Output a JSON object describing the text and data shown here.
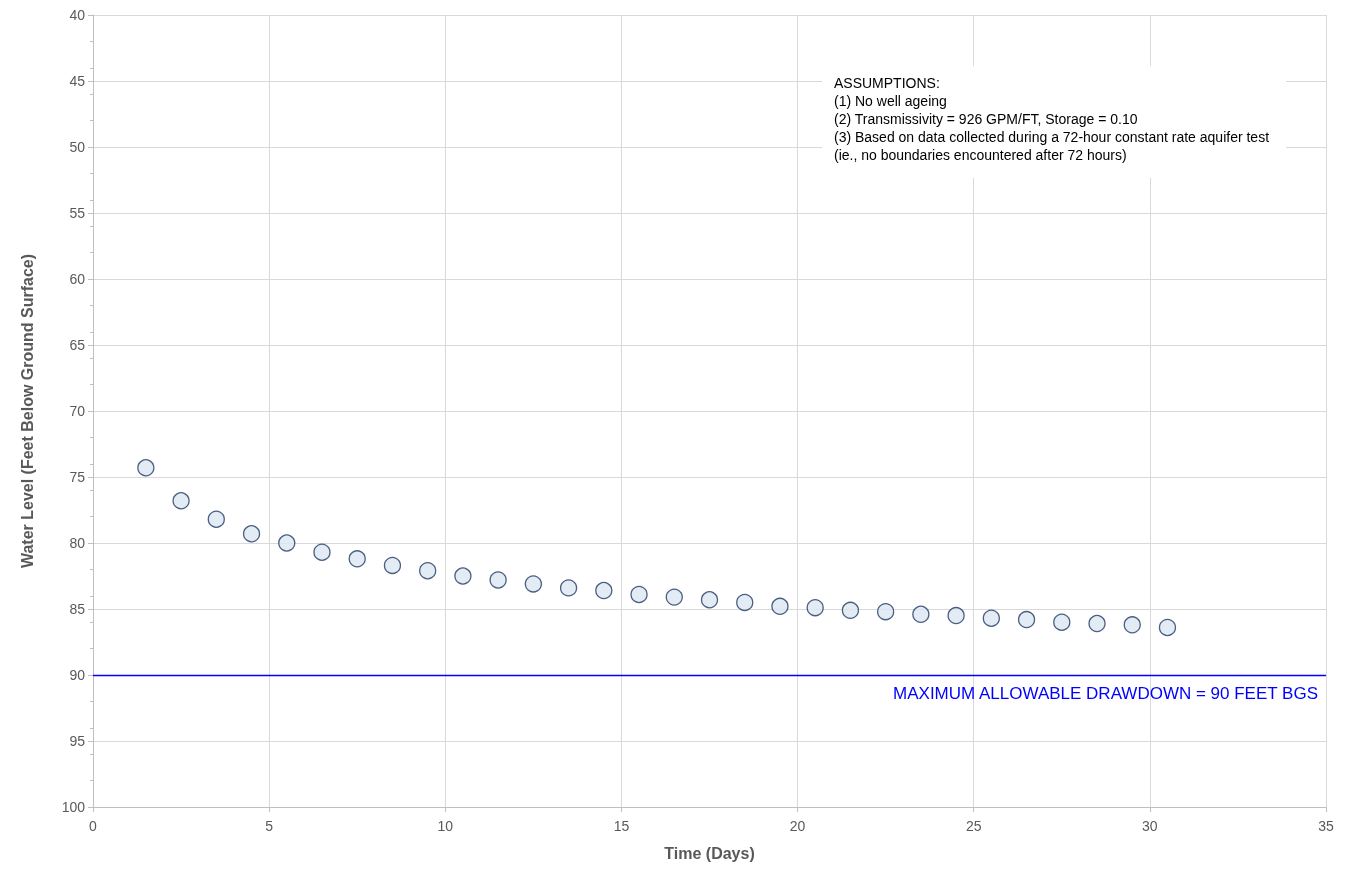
{
  "chart_data": {
    "type": "scatter",
    "xlabel": "Time (Days)",
    "ylabel": "Water Level (Feet Below Ground Surface)",
    "x": [
      1.5,
      2.5,
      3.5,
      4.5,
      5.5,
      6.5,
      7.5,
      8.5,
      9.5,
      10.5,
      11.5,
      12.5,
      13.5,
      14.5,
      15.5,
      16.5,
      17.5,
      18.5,
      19.5,
      20.5,
      21.5,
      22.5,
      23.5,
      24.5,
      25.5,
      26.5,
      27.5,
      28.5,
      29.5,
      30.5
    ],
    "series": [
      {
        "color": "#dce6f2",
        "values": [
          74.3,
          76.8,
          78.2,
          79.3,
          80.0,
          80.7,
          81.2,
          81.7,
          82.1,
          82.5,
          82.8,
          83.1,
          83.4,
          83.6,
          83.9,
          84.1,
          84.3,
          84.5,
          84.8,
          84.9,
          85.1,
          85.2,
          85.4,
          85.5,
          85.7,
          85.8,
          86.0,
          86.1,
          86.2,
          86.4
        ]
      }
    ],
    "xlim": [
      0,
      35
    ],
    "xticks": [
      0,
      5,
      10,
      15,
      20,
      25,
      30,
      35
    ],
    "ylim": [
      100,
      40
    ],
    "yticks": [
      40,
      45,
      50,
      55,
      60,
      65,
      70,
      75,
      80,
      85,
      90,
      95,
      100
    ],
    "grid": true,
    "marker": "circle",
    "ref_lines": [
      {
        "axis": "y",
        "value": 90,
        "label": "MAXIMUM ALLOWABLE DRAWDOWN = 90 FEET BGS",
        "color": "#0000ff"
      }
    ],
    "annotations": [
      "ASSUMPTIONS:",
      "(1) No well ageing",
      "(2) Transmissivity = 926 GPM/FT, Storage = 0.10",
      "(3) Based on data collected during a 72-hour constant rate aquifer test (ie., no boundaries encountered after 72 hours)"
    ]
  }
}
